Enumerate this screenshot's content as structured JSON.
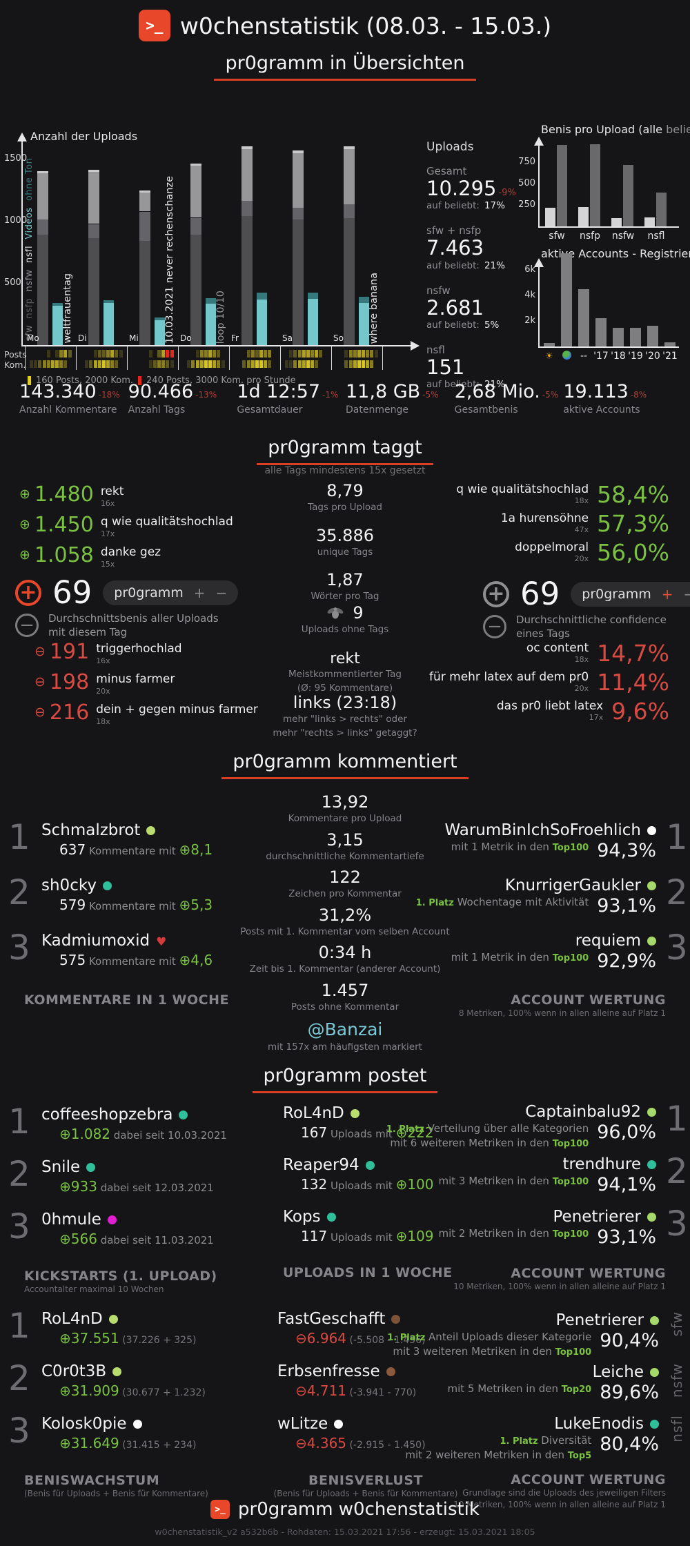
{
  "header": {
    "logo": ">_",
    "title": "w0chenstatistik (08.03. - 15.03.)"
  },
  "footer": {
    "logo": ">_",
    "title": "pr0gramm w0chenstatistik",
    "meta": "w0chenstatistik_v2 a532b6b - Rohdaten: 15.03.2021 17:56 - erzeugt: 15.03.2021 18:05"
  },
  "section_titles": {
    "overview": "pr0gramm in Übersichten",
    "taggt": "pr0gramm taggt",
    "taggt_sub": "alle Tags mindestens 15x gesetzt",
    "kommentiert": "pr0gramm kommentiert",
    "postet": "pr0gramm postet"
  },
  "chart_data": [
    {
      "id": "uploads",
      "type": "bar",
      "title": "Anzahl der Uploads",
      "categories": [
        "Mo",
        "Di",
        "Mi",
        "Do",
        "Fr",
        "Sa",
        "So"
      ],
      "series": [
        {
          "name": "sfw",
          "color": "#4e4e51",
          "values": [
            890,
            860,
            840,
            890,
            1040,
            1010,
            1020
          ]
        },
        {
          "name": "nsfp",
          "color": "#646468",
          "values": [
            120,
            115,
            235,
            135,
            120,
            95,
            115
          ]
        },
        {
          "name": "nsfw",
          "color": "#97979a",
          "values": [
            375,
            420,
            155,
            420,
            420,
            440,
            445
          ]
        },
        {
          "name": "nsfl",
          "color": "#c9c9cc",
          "values": [
            15,
            15,
            15,
            15,
            20,
            20,
            20
          ]
        },
        {
          "name": "Videos",
          "color": "#74c7cb",
          "values": [
            315,
            340,
            200,
            335,
            365,
            370,
            340
          ]
        },
        {
          "name": "ohne Ton",
          "color": "#35797d",
          "values": [
            25,
            20,
            25,
            45,
            55,
            50,
            50
          ]
        }
      ],
      "ylim": [
        0,
        1600
      ],
      "yticks": [
        500,
        1000,
        1500
      ],
      "axis_series_labels": [
        [
          "sfw",
          "#77777a"
        ],
        [
          "nsfp",
          "#5d5d60"
        ],
        [
          "nsfw",
          "#909094"
        ],
        [
          "nsfl",
          "#d8d8da"
        ],
        [
          "Videos",
          "#74c7cb"
        ],
        [
          "ohne Ton",
          "#35797d"
        ]
      ],
      "annotations": [
        {
          "text": "weltfrauentag",
          "day": 0,
          "color": "#e8e8ea"
        },
        {
          "text": "10.03.2021 never rechenschanze",
          "day": 2,
          "color": "#e8e8ea"
        },
        {
          "text": "loop 10/10",
          "day": 3,
          "color": "#9a9a9d"
        },
        {
          "text": "where banana",
          "day": 6,
          "color": "#e2e2e4"
        }
      ]
    },
    {
      "id": "benis",
      "type": "grouped-bar",
      "title_parts": [
        "Benis pro Upload (",
        "alle",
        " ",
        "beliebt",
        ")"
      ],
      "categories": [
        "sfw",
        "nsfp",
        "nsfw",
        "nsfl"
      ],
      "series": [
        {
          "name": "alle",
          "color": "#d4d4d6",
          "values": [
            215,
            225,
            95,
            105
          ]
        },
        {
          "name": "beliebt",
          "color": "#69696c",
          "values": [
            950,
            960,
            720,
            395
          ]
        }
      ],
      "ylim": [
        0,
        1050
      ],
      "yticks": [
        250,
        500,
        750
      ]
    },
    {
      "id": "accounts",
      "type": "bar",
      "title": "aktive Accounts - Registrierung",
      "categories": [
        "sun",
        "globe",
        "--",
        "'17",
        "'18",
        "'19",
        "'20",
        "'21"
      ],
      "values": [
        250,
        7300,
        4500,
        2200,
        1450,
        1450,
        1600,
        350
      ],
      "color": "#7e7e81",
      "ylim": [
        0,
        7600
      ],
      "yticks": [
        2000,
        4000,
        6000
      ],
      "ytick_labels": [
        "2k",
        "4k",
        "6k"
      ]
    }
  ],
  "activity": {
    "row_labels": [
      "Posts",
      "Kom."
    ],
    "legend": [
      {
        "color": "#e0ce28",
        "text": "160 Posts, 2000 Kom."
      },
      {
        "color": "#e22818",
        "text": "240 Posts, 3000 Kom. pro Stunde"
      }
    ],
    "posts": [
      "000001013420",
      "000012234210",
      "000001024RR0",
      "000013343200",
      "000023243300",
      "001234434200",
      "000133443310"
    ],
    "kom": [
      "011233443200",
      "001244543200",
      "000001233210",
      "001344554310",
      "000234554200",
      "011344542000",
      "000234554300"
    ]
  },
  "upload_stats": {
    "title": "Uploads",
    "items": [
      {
        "label": "Gesamt",
        "value": "10.295",
        "delta": "-9%",
        "sub_label": "auf beliebt:",
        "sub_value": "17%"
      },
      {
        "label": "sfw + nsfp",
        "value": "7.463",
        "delta": "",
        "sub_label": "auf beliebt:",
        "sub_value": "21%"
      },
      {
        "label": "nsfw",
        "value": "2.681",
        "delta": "",
        "sub_label": "auf beliebt:",
        "sub_value": "5%"
      },
      {
        "label": "nsfl",
        "value": "151",
        "delta": "",
        "sub_label": "auf beliebt:",
        "sub_value": "21%"
      }
    ]
  },
  "totals": [
    {
      "value": "143.340",
      "delta": "-18%",
      "label": "Anzahl Kommentare"
    },
    {
      "value": "90.466",
      "delta": "-13%",
      "label": "Anzahl Tags"
    },
    {
      "value": "1d 12:57",
      "delta": "-1%",
      "label": "Gesamtdauer"
    },
    {
      "value": "11,8 GB",
      "delta": "-5%",
      "label": "Datenmenge"
    },
    {
      "value": "2,68 Mio.",
      "delta": "-5%",
      "label": "Gesamtbenis"
    },
    {
      "value": "19.113",
      "delta": "-8%",
      "label": "aktive Accounts"
    }
  ],
  "taggt": {
    "plus_tags": [
      {
        "value": "1.480",
        "tag": "rekt",
        "count": "16x"
      },
      {
        "value": "1.450",
        "tag": "q wie qualitätshochlad",
        "count": "17x"
      },
      {
        "value": "1.058",
        "tag": "danke gez",
        "count": "15x"
      }
    ],
    "benis_badge": {
      "value": "69",
      "pill": "pr0gramm",
      "plus": "+",
      "minus": "−",
      "caption1": "Durchschnittsbenis aller Uploads",
      "caption2": "mit diesem Tag"
    },
    "minus_tags": [
      {
        "value": "191",
        "tag": "triggerhochlad",
        "count": "16x"
      },
      {
        "value": "198",
        "tag": "minus farmer",
        "count": "20x"
      },
      {
        "value": "216",
        "tag": "dein + gegen minus farmer",
        "count": "18x"
      }
    ],
    "stats": [
      {
        "value": "8,79",
        "label": "Tags pro Upload"
      },
      {
        "value": "35.886",
        "label": "unique Tags"
      },
      {
        "value": "1,87",
        "label": "Wörter pro Tag"
      }
    ],
    "ohne_tags": {
      "value": "9",
      "label": "Uploads ohne Tags"
    },
    "meist": {
      "tag": "rekt",
      "label1": "Meistkommentierter Tag",
      "label2": "(Ø: 95 Kommentare)"
    },
    "links": {
      "value": "links (23:18)",
      "sub1": "mehr \"links > rechts\" oder",
      "sub2": "mehr \"rechts > links\" getaggt?"
    },
    "conf_plus": [
      {
        "tag": "q wie qualitätshochlad",
        "count": "18x",
        "value": "58,4%"
      },
      {
        "tag": "1a hurensöhne",
        "count": "47x",
        "value": "57,3%"
      },
      {
        "tag": "doppelmoral",
        "count": "20x",
        "value": "56,0%"
      }
    ],
    "conf_badge": {
      "value": "69",
      "pill": "pr0gramm",
      "plus": "+",
      "minus": "−",
      "caption1": "Durchschnittliche confidence",
      "caption2": "eines Tags"
    },
    "conf_minus": [
      {
        "tag": "oc content",
        "count": "18x",
        "value": "14,7%"
      },
      {
        "tag": "für mehr latex auf dem pr0",
        "count": "20x",
        "value": "11,4%"
      },
      {
        "tag": "das pr0 liebt latex",
        "count": "17x",
        "value": "9,6%"
      }
    ]
  },
  "kommentiert": {
    "left": {
      "footer": "KOMMENTARE IN 1 WOCHE",
      "footer_subs": [],
      "entries": [
        {
          "rank": "1",
          "name": "Schmalzbrot",
          "dot": "#b9dc6e",
          "seg": [
            [
              "w",
              "637"
            ],
            [
              "g",
              " Kommentare mit "
            ],
            [
              "grn",
              "⊕8,1"
            ]
          ]
        },
        {
          "rank": "2",
          "name": "sh0cky",
          "dot": "#2fbf9a",
          "seg": [
            [
              "w",
              "579"
            ],
            [
              "g",
              " Kommentare mit "
            ],
            [
              "grn",
              "⊕5,3"
            ]
          ]
        },
        {
          "rank": "3",
          "name": "Kadmiumoxid",
          "dot": "heart",
          "seg": [
            [
              "w",
              "575"
            ],
            [
              "g",
              " Kommentare mit "
            ],
            [
              "grn",
              "⊕4,6"
            ]
          ]
        }
      ]
    },
    "middle": [
      {
        "value": "13,92",
        "label": "Kommentare pro Upload"
      },
      {
        "value": "3,15",
        "label": "durchschnittliche Kommentartiefe"
      },
      {
        "value": "122",
        "label": "Zeichen pro Kommentar"
      },
      {
        "value": "31,2%",
        "label": "Posts mit 1. Kommentar vom selben Account"
      },
      {
        "value": "0:34 h",
        "label": "Zeit bis 1. Kommentar (anderer Account)"
      },
      {
        "value": "1.457",
        "label": "Posts ohne Kommentar"
      }
    ],
    "banzai": {
      "name": "@Banzai",
      "label": "mit 157x am häufigsten markiert"
    },
    "right": {
      "footer": "ACCOUNT WERTUNG",
      "footer_subs": [
        "8 Metriken, 100% wenn in allen alleine auf Platz 1"
      ],
      "entries": [
        {
          "rank": "1",
          "name": "WarumBinIchSoFroehlich",
          "dot": "#ffffff",
          "lines": [
            [
              [
                "g",
                "mit 1 Metrik in den "
              ],
              [
                "hl",
                "Top100"
              ]
            ]
          ],
          "pct": "94,3%"
        },
        {
          "rank": "2",
          "name": "KnurrigerGaukler",
          "dot": "#a6d96a",
          "lines": [
            [
              [
                "platz",
                "1. Platz"
              ],
              [
                "g",
                "  Wochentage mit Aktivität"
              ]
            ]
          ],
          "pct": "93,1%"
        },
        {
          "rank": "3",
          "name": "requiem",
          "dot": "#a6d96a",
          "lines": [
            [
              [
                "g",
                "mit 1 Metrik in den "
              ],
              [
                "hl",
                "Top100"
              ]
            ]
          ],
          "pct": "92,9%"
        }
      ]
    }
  },
  "postet": {
    "kickstarts": {
      "footer": "KICKSTARTS (1. UPLOAD)",
      "footer_subs": [
        "Accountalter maximal 10 Wochen"
      ],
      "entries": [
        {
          "rank": "1",
          "name": "coffeeshopzebra",
          "dot": "#2fbf9a",
          "seg": [
            [
              "grn",
              "⊕1.082"
            ],
            [
              "g",
              "  dabei seit 10.03.2021"
            ]
          ]
        },
        {
          "rank": "2",
          "name": "Snile",
          "dot": "#2fbf9a",
          "seg": [
            [
              "grn",
              "⊕933"
            ],
            [
              "g",
              "  dabei seit 12.03.2021"
            ]
          ]
        },
        {
          "rank": "3",
          "name": "0hmule",
          "dot": "#e01fd0",
          "seg": [
            [
              "grn",
              "⊕566"
            ],
            [
              "g",
              "  dabei seit 11.03.2021"
            ]
          ]
        }
      ]
    },
    "uploads_week": {
      "footer": "UPLOADS IN 1 WOCHE",
      "footer_subs": [],
      "entries": [
        {
          "name": "RoL4nD",
          "dot": "#b9dc6e",
          "seg": [
            [
              "w",
              "167"
            ],
            [
              "g",
              " Uploads mit "
            ],
            [
              "grn",
              "⊕222"
            ]
          ]
        },
        {
          "name": "Reaper94",
          "dot": "#2fbf9a",
          "seg": [
            [
              "w",
              "132"
            ],
            [
              "g",
              " Uploads mit "
            ],
            [
              "grn",
              "⊕100"
            ]
          ]
        },
        {
          "name": "Kops",
          "dot": "#2fbf9a",
          "seg": [
            [
              "w",
              "117"
            ],
            [
              "g",
              " Uploads mit "
            ],
            [
              "grn",
              "⊕109"
            ]
          ]
        }
      ]
    },
    "wertung1": {
      "footer": "ACCOUNT WERTUNG",
      "footer_subs": [
        "10 Metriken, 100% wenn in allen alleine auf Platz 1"
      ],
      "entries": [
        {
          "rank": "1",
          "name": "Captainbalu92",
          "dot": "#a6d96a",
          "lines": [
            [
              [
                "platz",
                "1. Platz"
              ],
              [
                "g",
                "  Verteilung über alle Kategorien"
              ]
            ],
            [
              [
                "g",
                "mit 6 weiteren Metriken in den "
              ],
              [
                "hl",
                "Top100"
              ]
            ]
          ],
          "pct": "96,0%"
        },
        {
          "rank": "2",
          "name": "trendhure",
          "dot": "#2fbf9a",
          "lines": [
            [
              [
                "g",
                "mit 3 Metriken in den "
              ],
              [
                "hl",
                "Top100"
              ]
            ]
          ],
          "pct": "94,1%"
        },
        {
          "rank": "3",
          "name": "Penetrierer",
          "dot": "#a6d96a",
          "lines": [
            [
              [
                "g",
                "mit 2 Metriken in den "
              ],
              [
                "hl",
                "Top100"
              ]
            ]
          ],
          "pct": "93,1%"
        }
      ]
    },
    "beniswachstum": {
      "footer": "BENISWACHSTUM",
      "footer_subs": [
        "(Benis für Uploads + Benis für Kommentare)"
      ],
      "entries": [
        {
          "rank": "1",
          "name": "RoL4nD",
          "dot": "#b9dc6e",
          "seg": [
            [
              "grn",
              "⊕37.551"
            ],
            [
              "gs",
              "  (37.226 + 325)"
            ]
          ]
        },
        {
          "rank": "2",
          "name": "C0r0t3B",
          "dot": "#b9dc6e",
          "seg": [
            [
              "grn",
              "⊕31.909"
            ],
            [
              "gs",
              "  (30.677 + 1.232)"
            ]
          ]
        },
        {
          "rank": "3",
          "name": "Kolosk0pie",
          "dot": "#ffffff",
          "seg": [
            [
              "grn",
              "⊕31.649"
            ],
            [
              "gs",
              "  (31.415 + 234)"
            ]
          ]
        }
      ]
    },
    "benisverlust": {
      "footer": "BENISVERLUST",
      "footer_subs": [
        "(Benis für Uploads + Benis für Kommentare)"
      ],
      "entries": [
        {
          "name": "FastGeschafft",
          "dot": "#7d5236",
          "seg": [
            [
              "red",
              "⊖6.964"
            ],
            [
              "gs",
              "  (-5.508 - 1.456)"
            ]
          ]
        },
        {
          "name": "Erbsenfresse",
          "dot": "#8a5a3a",
          "seg": [
            [
              "red",
              "⊖4.711"
            ],
            [
              "gs",
              "  (-3.941 - 770)"
            ]
          ]
        },
        {
          "name": "wLitze",
          "dot": "#ffffff",
          "seg": [
            [
              "red",
              "⊖4.365"
            ],
            [
              "gs",
              "  (-2.915 - 1.450)"
            ]
          ]
        }
      ]
    },
    "wertung2": {
      "footer": "ACCOUNT WERTUNG",
      "footer_subs": [
        "Grundlage sind die Uploads des jeweiligen Filters",
        "10 Metriken, 100% wenn in allen alleine auf Platz 1"
      ],
      "entries": [
        {
          "name": "Penetrierer",
          "dot": "#a6d96a",
          "side": "sfw",
          "lines": [
            [
              [
                "platz",
                "1. Platz"
              ],
              [
                "g",
                "  Anteil Uploads dieser Kategorie"
              ]
            ],
            [
              [
                "g",
                "mit 3 weiteren Metriken in den "
              ],
              [
                "hl",
                "Top100"
              ]
            ]
          ],
          "pct": "90,4%"
        },
        {
          "name": "Leiche",
          "dot": "#a6d96a",
          "side": "nsfw",
          "lines": [
            [
              [
                "g",
                "mit 5 Metriken in den "
              ],
              [
                "hl",
                "Top20"
              ]
            ]
          ],
          "pct": "89,6%"
        },
        {
          "name": "LukeEnodis",
          "dot": "#2fbf9a",
          "side": "nsfl",
          "lines": [
            [
              [
                "platz",
                "1. Platz"
              ],
              [
                "g",
                "  Diversität"
              ]
            ],
            [
              [
                "g",
                "mit 2 weiteren Metriken in den "
              ],
              [
                "hl",
                "Top5"
              ]
            ]
          ],
          "pct": "80,4%"
        }
      ]
    }
  }
}
